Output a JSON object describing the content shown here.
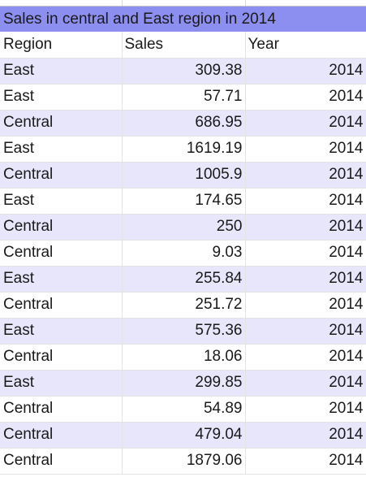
{
  "sheet": {
    "title": "Sales in central and East region in 2014",
    "headers": {
      "region": "Region",
      "sales": "Sales",
      "year": "Year"
    },
    "rows": [
      {
        "region": "East",
        "sales": "309.38",
        "year": "2014"
      },
      {
        "region": "East",
        "sales": "57.71",
        "year": "2014"
      },
      {
        "region": "Central",
        "sales": "686.95",
        "year": "2014"
      },
      {
        "region": "East",
        "sales": "1619.19",
        "year": "2014"
      },
      {
        "region": "Central",
        "sales": "1005.9",
        "year": "2014"
      },
      {
        "region": "East",
        "sales": "174.65",
        "year": "2014"
      },
      {
        "region": "Central",
        "sales": "250",
        "year": "2014"
      },
      {
        "region": "Central",
        "sales": "9.03",
        "year": "2014"
      },
      {
        "region": "East",
        "sales": "255.84",
        "year": "2014"
      },
      {
        "region": "Central",
        "sales": "251.72",
        "year": "2014"
      },
      {
        "region": "East",
        "sales": "575.36",
        "year": "2014"
      },
      {
        "region": "Central",
        "sales": "18.06",
        "year": "2014"
      },
      {
        "region": "East",
        "sales": "299.85",
        "year": "2014"
      },
      {
        "region": "Central",
        "sales": "54.89",
        "year": "2014"
      },
      {
        "region": "Central",
        "sales": "479.04",
        "year": "2014"
      },
      {
        "region": "Central",
        "sales": "1879.06",
        "year": "2014"
      }
    ]
  },
  "colors": {
    "title_background": "#8c8ff0",
    "band_background": "#e7e6fb",
    "text": "#1a1a1a"
  }
}
